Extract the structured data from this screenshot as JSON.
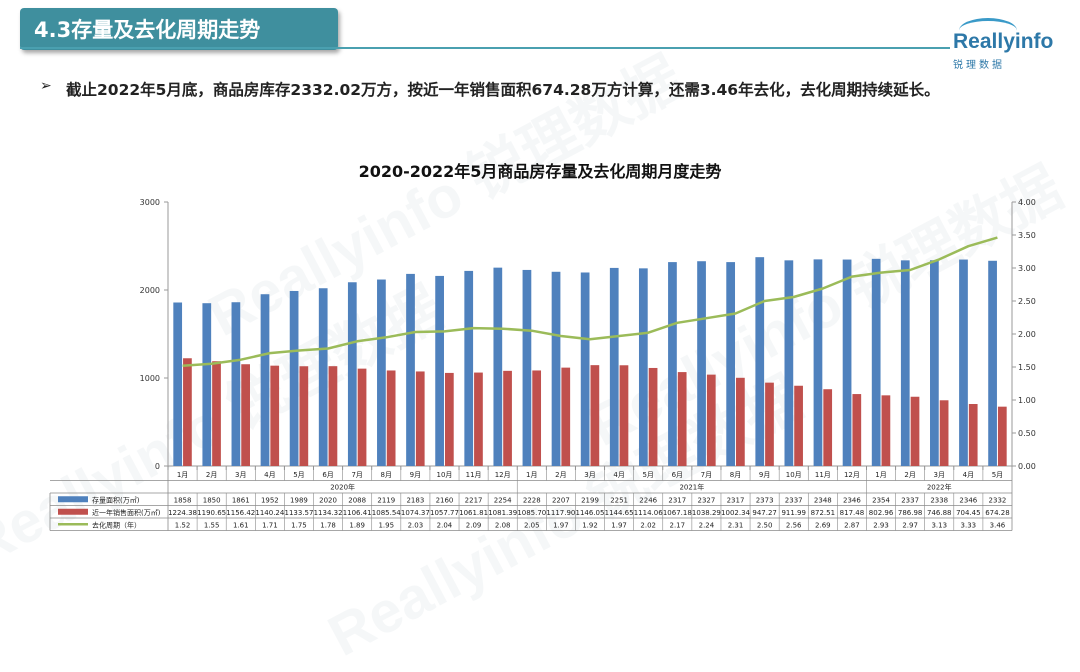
{
  "header": {
    "title": "4.3存量及去化周期走势"
  },
  "logo": {
    "name": "Reallyinfo",
    "sub": "锐理数据"
  },
  "bullet": {
    "symbol": "➢",
    "text": "截止2022年5月底，商品房库存2332.02万方，按近一年销售面积674.28万方计算，还需3.46年去化，去化周期持续延长。"
  },
  "watermark": "Reallyinfo 锐理数据",
  "colors": {
    "bar_stock": "#4f81bd",
    "bar_sales": "#c0504d",
    "line": "#9bbb59",
    "title_bg": "#3f8f9e"
  },
  "chart_data": {
    "type": "bar",
    "title": "2020-2022年5月商品房存量及去化周期月度走势",
    "categories": [
      "1月",
      "2月",
      "3月",
      "4月",
      "5月",
      "6月",
      "7月",
      "8月",
      "9月",
      "10月",
      "11月",
      "12月",
      "1月",
      "2月",
      "3月",
      "4月",
      "5月",
      "6月",
      "7月",
      "8月",
      "9月",
      "10月",
      "11月",
      "12月",
      "1月",
      "2月",
      "3月",
      "4月",
      "5月"
    ],
    "years": [
      {
        "label": "2020年",
        "start": 0,
        "end": 11
      },
      {
        "label": "2021年",
        "start": 12,
        "end": 23
      },
      {
        "label": "2022年",
        "start": 24,
        "end": 28
      }
    ],
    "y_left": {
      "min": 0,
      "max": 3000,
      "ticks": [
        "0",
        "1000",
        "2000",
        "3000"
      ]
    },
    "y_right": {
      "min": 0,
      "max": 4,
      "ticks": [
        "0.00",
        "0.50",
        "1.00",
        "1.50",
        "2.00",
        "2.50",
        "3.00",
        "3.50",
        "4.00"
      ]
    },
    "series": [
      {
        "name": "存量面积(万㎡)",
        "type": "bar",
        "axis": "left",
        "values": [
          1858,
          1850,
          1861,
          1952,
          1989,
          2020,
          2088,
          2119,
          2183,
          2160,
          2217,
          2254,
          2228,
          2207,
          2199,
          2251,
          2246,
          2317,
          2327,
          2317,
          2373,
          2337,
          2348,
          2346,
          2354,
          2337,
          2338,
          2346,
          2332
        ],
        "labels": [
          "1858",
          "1850",
          "1861",
          "1952",
          "1989",
          "2020",
          "2088",
          "2119",
          "2183",
          "2160",
          "2217",
          "2254",
          "2228",
          "2207",
          "2199",
          "2251",
          "2246",
          "2317",
          "2327",
          "2317",
          "2373",
          "2337",
          "2348",
          "2346",
          "2354",
          "2337",
          "2338",
          "2346",
          "2332"
        ]
      },
      {
        "name": "近一年销售面积(万㎡)",
        "type": "bar",
        "axis": "left",
        "values": [
          1224.38,
          1190.65,
          1156.42,
          1140.24,
          1133.57,
          1134.32,
          1106.41,
          1085.54,
          1074.37,
          1057.77,
          1061.81,
          1081.39,
          1085.7,
          1117.9,
          1146.05,
          1144.65,
          1114.06,
          1067.18,
          1038.29,
          1002.34,
          947.27,
          911.99,
          872.51,
          817.48,
          802.96,
          786.98,
          746.88,
          704.45,
          674.28
        ],
        "labels": [
          "1224.38",
          "1190.65",
          "1156.42",
          "1140.24",
          "1133.57",
          "1134.32",
          "1106.41",
          "1085.54",
          "1074.37",
          "1057.77",
          "1061.81",
          "1081.39",
          "1085.70",
          "1117.90",
          "1146.05",
          "1144.65",
          "1114.06",
          "1067.18",
          "1038.29",
          "1002.34",
          "947.27",
          "911.99",
          "872.51",
          "817.48",
          "802.96",
          "786.98",
          "746.88",
          "704.45",
          "674.28"
        ]
      },
      {
        "name": "去化周期（年）",
        "type": "line",
        "axis": "right",
        "values": [
          1.52,
          1.55,
          1.61,
          1.71,
          1.75,
          1.78,
          1.89,
          1.95,
          2.03,
          2.04,
          2.09,
          2.08,
          2.05,
          1.97,
          1.92,
          1.97,
          2.02,
          2.17,
          2.24,
          2.31,
          2.5,
          2.56,
          2.69,
          2.87,
          2.93,
          2.97,
          3.13,
          3.33,
          3.46
        ],
        "labels": [
          "1.52",
          "1.55",
          "1.61",
          "1.71",
          "1.75",
          "1.78",
          "1.89",
          "1.95",
          "2.03",
          "2.04",
          "2.09",
          "2.08",
          "2.05",
          "1.97",
          "1.92",
          "1.97",
          "2.02",
          "2.17",
          "2.24",
          "2.31",
          "2.50",
          "2.56",
          "2.69",
          "2.87",
          "2.93",
          "2.97",
          "3.13",
          "3.33",
          "3.46"
        ]
      }
    ]
  }
}
